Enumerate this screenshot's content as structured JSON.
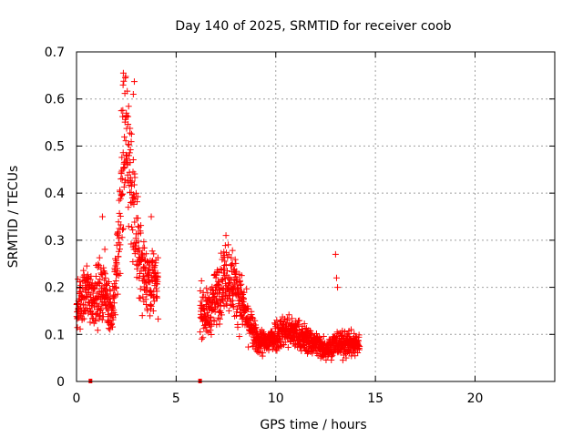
{
  "chart_data": {
    "type": "scatter",
    "title": "Day 140 of 2025, SRMTID for receiver coob",
    "xlabel": "GPS time / hours",
    "ylabel": "SRMTID / TECUs",
    "xlim": [
      0,
      24
    ],
    "ylim": [
      0,
      0.7
    ],
    "xticks": [
      0,
      5,
      10,
      15,
      20
    ],
    "xtick_labels": [
      "0",
      "5",
      "10",
      "15",
      "20"
    ],
    "yticks": [
      0,
      0.1,
      0.2,
      0.3,
      0.4,
      0.5,
      0.6,
      0.7
    ],
    "ytick_labels": [
      "0",
      "0.1",
      "0.2",
      "0.3",
      "0.4",
      "0.5",
      "0.6",
      "0.7"
    ],
    "grid": true,
    "marker": "plus",
    "color": "#ff0000",
    "gap_markers": [
      0.7,
      6.2
    ],
    "segments": [
      {
        "x_start": 0.0,
        "x_end": 4.1,
        "profile": [
          [
            0.0,
            0.15
          ],
          [
            0.5,
            0.19
          ],
          [
            1.0,
            0.18
          ],
          [
            1.4,
            0.2
          ],
          [
            1.8,
            0.14
          ],
          [
            2.1,
            0.28
          ],
          [
            2.4,
            0.52
          ],
          [
            2.7,
            0.45
          ],
          [
            3.0,
            0.3
          ],
          [
            3.3,
            0.24
          ],
          [
            3.6,
            0.22
          ],
          [
            4.1,
            0.2
          ]
        ]
      },
      {
        "x_start": 6.2,
        "x_end": 14.2,
        "profile": [
          [
            6.2,
            0.16
          ],
          [
            6.6,
            0.14
          ],
          [
            7.0,
            0.18
          ],
          [
            7.5,
            0.23
          ],
          [
            8.0,
            0.2
          ],
          [
            8.5,
            0.14
          ],
          [
            9.0,
            0.09
          ],
          [
            9.5,
            0.08
          ],
          [
            10.0,
            0.1
          ],
          [
            10.5,
            0.11
          ],
          [
            11.0,
            0.1
          ],
          [
            11.5,
            0.09
          ],
          [
            12.0,
            0.08
          ],
          [
            12.5,
            0.07
          ],
          [
            13.0,
            0.08
          ],
          [
            13.5,
            0.08
          ],
          [
            14.2,
            0.08
          ]
        ]
      }
    ],
    "outliers": [
      {
        "x": 2.35,
        "y": 0.655
      },
      {
        "x": 2.45,
        "y": 0.645
      },
      {
        "x": 2.9,
        "y": 0.637
      },
      {
        "x": 2.85,
        "y": 0.61
      },
      {
        "x": 2.25,
        "y": 0.575
      },
      {
        "x": 2.5,
        "y": 0.565
      },
      {
        "x": 13.0,
        "y": 0.27
      },
      {
        "x": 13.05,
        "y": 0.22
      },
      {
        "x": 13.1,
        "y": 0.2
      },
      {
        "x": 7.5,
        "y": 0.31
      },
      {
        "x": 1.3,
        "y": 0.35
      },
      {
        "x": 3.75,
        "y": 0.35
      }
    ]
  }
}
